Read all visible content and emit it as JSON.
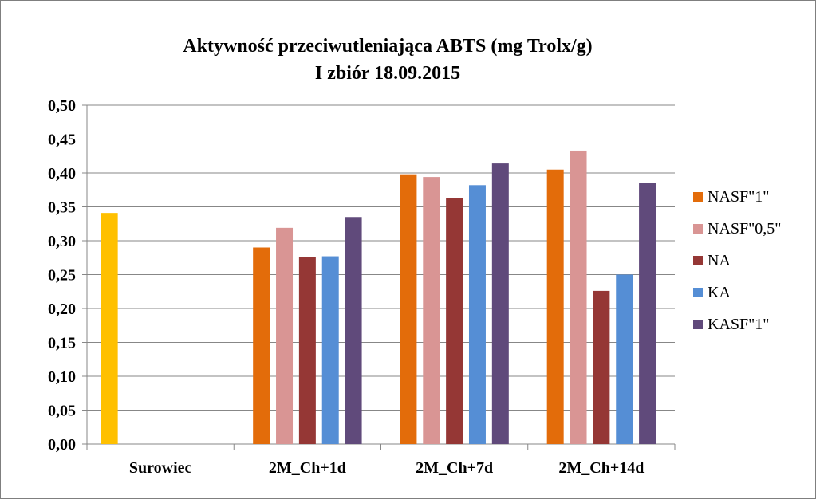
{
  "chart_data": {
    "type": "bar",
    "title_lines": [
      "Aktywność  przeciwutleniająca ABTS (mg Trolx/g)",
      "I zbiór 18.09.2015"
    ],
    "categories": [
      "Surowiec",
      "2M_Ch+1d",
      "2M_Ch+7d",
      "2M_Ch+14d"
    ],
    "series": [
      {
        "name": "Surowiec",
        "color": "#FFC000",
        "in_legend": false,
        "values": [
          0.341,
          null,
          null,
          null
        ]
      },
      {
        "name": "NASF\"1\"",
        "color": "#E36C0A",
        "in_legend": true,
        "values": [
          null,
          0.29,
          0.398,
          0.405
        ]
      },
      {
        "name": "NASF\"0,5\"",
        "color": "#D99594",
        "in_legend": true,
        "values": [
          null,
          0.319,
          0.394,
          0.433
        ]
      },
      {
        "name": "NA",
        "color": "#953735",
        "in_legend": true,
        "values": [
          null,
          0.276,
          0.363,
          0.226
        ]
      },
      {
        "name": "KA",
        "color": "#558ED5",
        "in_legend": true,
        "values": [
          null,
          0.277,
          0.382,
          0.25
        ]
      },
      {
        "name": "KASF\"1\"",
        "color": "#604A7B",
        "in_legend": true,
        "values": [
          null,
          0.335,
          0.414,
          0.385
        ]
      }
    ],
    "ylim": [
      0,
      0.5
    ],
    "yticks": [
      "0,00",
      "0,05",
      "0,10",
      "0,15",
      "0,20",
      "0,25",
      "0,30",
      "0,35",
      "0,40",
      "0,45",
      "0,50"
    ],
    "xlabel": "",
    "ylabel": "",
    "grid": true,
    "legend_position": "right"
  }
}
